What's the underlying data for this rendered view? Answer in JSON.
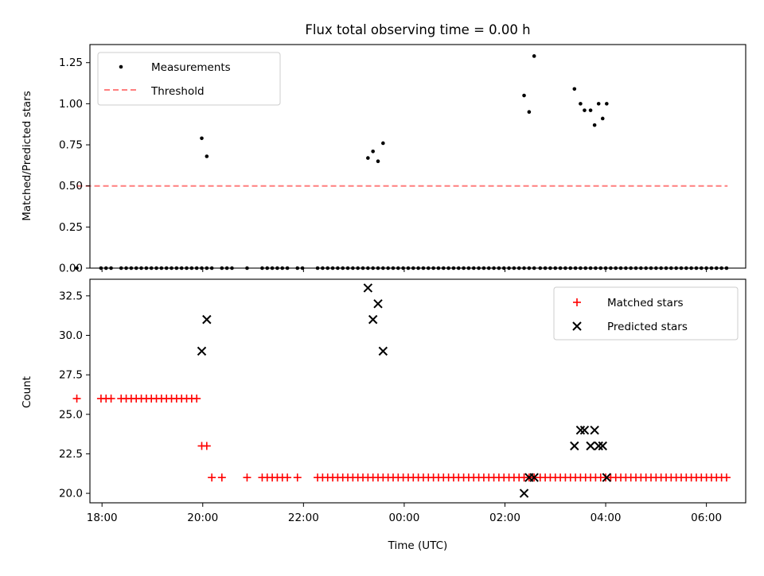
{
  "chart_data": [
    {
      "type": "scatter",
      "title": "Flux total observing time = 0.00 h",
      "xlabel": "",
      "ylabel": "Matched/Predicted stars",
      "ylim": [
        0,
        1.36
      ],
      "xlim": [
        -6.24,
        6.78
      ],
      "x_unit": "hours relative to 00:00 UTC",
      "yticks": [
        "0.00",
        "0.25",
        "0.50",
        "0.75",
        "1.00",
        "1.25"
      ],
      "legend": {
        "placement": "upper-left",
        "entries": [
          "Measurements",
          "Threshold"
        ]
      },
      "threshold": {
        "name": "Threshold",
        "value": 0.5,
        "x_range": [
          -6.5,
          6.42
        ],
        "color": "#ff7f7f"
      },
      "series": [
        {
          "name": "Measurements",
          "marker": "dot",
          "color": "#000000",
          "points": [
            [
              -6.5,
              0
            ],
            [
              -6.02,
              0
            ],
            [
              -5.92,
              0
            ],
            [
              -5.82,
              0
            ],
            [
              -5.62,
              0
            ],
            [
              -5.52,
              0
            ],
            [
              -5.42,
              0
            ],
            [
              -5.32,
              0
            ],
            [
              -5.22,
              0
            ],
            [
              -5.12,
              0
            ],
            [
              -5.02,
              0
            ],
            [
              -4.92,
              0
            ],
            [
              -4.82,
              0
            ],
            [
              -4.72,
              0
            ],
            [
              -4.62,
              0
            ],
            [
              -4.52,
              0
            ],
            [
              -4.42,
              0
            ],
            [
              -4.32,
              0
            ],
            [
              -4.22,
              0
            ],
            [
              -4.12,
              0
            ],
            [
              -4.02,
              0
            ],
            [
              -3.92,
              0
            ],
            [
              -3.82,
              0
            ],
            [
              -3.62,
              0
            ],
            [
              -3.52,
              0
            ],
            [
              -3.42,
              0
            ],
            [
              -3.12,
              0
            ],
            [
              -2.82,
              0
            ],
            [
              -2.72,
              0
            ],
            [
              -2.62,
              0
            ],
            [
              -2.52,
              0
            ],
            [
              -2.42,
              0
            ],
            [
              -2.32,
              0
            ],
            [
              -2.12,
              0
            ],
            [
              -2.02,
              0
            ],
            [
              -1.72,
              0
            ],
            [
              -1.62,
              0
            ],
            [
              -1.52,
              0
            ],
            [
              -1.42,
              0
            ],
            [
              -1.32,
              0
            ],
            [
              -1.22,
              0
            ],
            [
              -1.12,
              0
            ],
            [
              -1.02,
              0
            ],
            [
              -0.92,
              0
            ],
            [
              -0.82,
              0
            ],
            [
              -0.72,
              0
            ],
            [
              -0.62,
              0
            ],
            [
              -0.52,
              0
            ],
            [
              -0.42,
              0
            ],
            [
              -0.32,
              0
            ],
            [
              -0.22,
              0
            ],
            [
              -0.12,
              0
            ],
            [
              -0.02,
              0
            ],
            [
              0.08,
              0
            ],
            [
              0.18,
              0
            ],
            [
              0.28,
              0
            ],
            [
              0.38,
              0
            ],
            [
              0.48,
              0
            ],
            [
              0.58,
              0
            ],
            [
              0.68,
              0
            ],
            [
              0.78,
              0
            ],
            [
              0.88,
              0
            ],
            [
              0.98,
              0
            ],
            [
              1.08,
              0
            ],
            [
              1.18,
              0
            ],
            [
              1.28,
              0
            ],
            [
              1.38,
              0
            ],
            [
              1.48,
              0
            ],
            [
              1.58,
              0
            ],
            [
              1.68,
              0
            ],
            [
              1.78,
              0
            ],
            [
              1.88,
              0
            ],
            [
              1.98,
              0
            ],
            [
              2.08,
              0
            ],
            [
              2.18,
              0
            ],
            [
              2.28,
              0
            ],
            [
              2.38,
              0
            ],
            [
              2.48,
              0
            ],
            [
              2.58,
              0
            ],
            [
              2.7,
              0
            ],
            [
              2.8,
              0
            ],
            [
              2.9,
              0
            ],
            [
              3.0,
              0
            ],
            [
              3.1,
              0
            ],
            [
              3.2,
              0
            ],
            [
              3.3,
              0
            ],
            [
              3.4,
              0
            ],
            [
              3.5,
              0
            ],
            [
              3.6,
              0
            ],
            [
              3.7,
              0
            ],
            [
              3.8,
              0
            ],
            [
              3.9,
              0
            ],
            [
              4.0,
              0
            ],
            [
              4.1,
              0
            ],
            [
              4.2,
              0
            ],
            [
              4.3,
              0
            ],
            [
              4.4,
              0
            ],
            [
              4.5,
              0
            ],
            [
              4.6,
              0
            ],
            [
              4.7,
              0
            ],
            [
              4.8,
              0
            ],
            [
              4.9,
              0
            ],
            [
              5.0,
              0
            ],
            [
              5.1,
              0
            ],
            [
              5.2,
              0
            ],
            [
              5.3,
              0
            ],
            [
              5.4,
              0
            ],
            [
              5.5,
              0
            ],
            [
              5.6,
              0
            ],
            [
              5.7,
              0
            ],
            [
              5.8,
              0
            ],
            [
              5.9,
              0
            ],
            [
              6.0,
              0
            ],
            [
              6.1,
              0
            ],
            [
              6.2,
              0
            ],
            [
              6.3,
              0
            ],
            [
              6.4,
              0
            ],
            [
              -4.02,
              0.79
            ],
            [
              -3.92,
              0.68
            ],
            [
              -0.72,
              0.67
            ],
            [
              -0.62,
              0.71
            ],
            [
              -0.52,
              0.65
            ],
            [
              -0.42,
              0.76
            ],
            [
              2.38,
              1.05
            ],
            [
              2.48,
              0.95
            ],
            [
              2.58,
              1.29
            ],
            [
              3.38,
              1.09
            ],
            [
              3.5,
              1.0
            ],
            [
              3.58,
              0.96
            ],
            [
              3.7,
              0.96
            ],
            [
              3.78,
              0.87
            ],
            [
              3.86,
              1.0
            ],
            [
              3.94,
              0.91
            ],
            [
              4.02,
              1.0
            ]
          ]
        }
      ]
    },
    {
      "type": "scatter",
      "title": "",
      "xlabel": "Time (UTC)",
      "ylabel": "Count",
      "ylim": [
        19.4,
        33.55
      ],
      "xlim": [
        -6.24,
        6.78
      ],
      "x_unit": "hours relative to 00:00 UTC",
      "xticks": [
        {
          "value": -6,
          "label": "18:00"
        },
        {
          "value": -4,
          "label": "20:00"
        },
        {
          "value": -2,
          "label": "22:00"
        },
        {
          "value": 0,
          "label": "00:00"
        },
        {
          "value": 2,
          "label": "02:00"
        },
        {
          "value": 4,
          "label": "04:00"
        },
        {
          "value": 6,
          "label": "06:00"
        }
      ],
      "yticks": [
        "20.0",
        "22.5",
        "25.0",
        "27.5",
        "30.0",
        "32.5"
      ],
      "legend": {
        "placement": "upper-right",
        "entries": [
          "Matched stars",
          "Predicted stars"
        ]
      },
      "series": [
        {
          "name": "Matched stars",
          "marker": "plus",
          "color": "#ff0000",
          "points": [
            [
              -6.5,
              26
            ],
            [
              -6.02,
              26
            ],
            [
              -5.92,
              26
            ],
            [
              -5.82,
              26
            ],
            [
              -5.62,
              26
            ],
            [
              -5.52,
              26
            ],
            [
              -5.42,
              26
            ],
            [
              -5.32,
              26
            ],
            [
              -5.22,
              26
            ],
            [
              -5.12,
              26
            ],
            [
              -5.02,
              26
            ],
            [
              -4.92,
              26
            ],
            [
              -4.82,
              26
            ],
            [
              -4.72,
              26
            ],
            [
              -4.62,
              26
            ],
            [
              -4.52,
              26
            ],
            [
              -4.42,
              26
            ],
            [
              -4.32,
              26
            ],
            [
              -4.22,
              26
            ],
            [
              -4.12,
              26
            ],
            [
              -4.02,
              23
            ],
            [
              -3.92,
              23
            ],
            [
              -3.82,
              21
            ],
            [
              -3.62,
              21
            ],
            [
              -3.12,
              21
            ],
            [
              -2.82,
              21
            ],
            [
              -2.72,
              21
            ],
            [
              -2.62,
              21
            ],
            [
              -2.52,
              21
            ],
            [
              -2.42,
              21
            ],
            [
              -2.32,
              21
            ],
            [
              -2.12,
              21
            ],
            [
              -1.72,
              21
            ],
            [
              -1.62,
              21
            ],
            [
              -1.52,
              21
            ],
            [
              -1.42,
              21
            ],
            [
              -1.32,
              21
            ],
            [
              -1.22,
              21
            ],
            [
              -1.12,
              21
            ],
            [
              -1.02,
              21
            ],
            [
              -0.92,
              21
            ],
            [
              -0.82,
              21
            ],
            [
              -0.72,
              21
            ],
            [
              -0.62,
              21
            ],
            [
              -0.52,
              21
            ],
            [
              -0.42,
              21
            ],
            [
              -0.32,
              21
            ],
            [
              -0.22,
              21
            ],
            [
              -0.12,
              21
            ],
            [
              -0.02,
              21
            ],
            [
              0.08,
              21
            ],
            [
              0.18,
              21
            ],
            [
              0.28,
              21
            ],
            [
              0.38,
              21
            ],
            [
              0.48,
              21
            ],
            [
              0.58,
              21
            ],
            [
              0.68,
              21
            ],
            [
              0.78,
              21
            ],
            [
              0.88,
              21
            ],
            [
              0.98,
              21
            ],
            [
              1.08,
              21
            ],
            [
              1.18,
              21
            ],
            [
              1.28,
              21
            ],
            [
              1.38,
              21
            ],
            [
              1.48,
              21
            ],
            [
              1.58,
              21
            ],
            [
              1.68,
              21
            ],
            [
              1.78,
              21
            ],
            [
              1.88,
              21
            ],
            [
              1.98,
              21
            ],
            [
              2.08,
              21
            ],
            [
              2.18,
              21
            ],
            [
              2.28,
              21
            ],
            [
              2.38,
              21
            ],
            [
              2.48,
              21
            ],
            [
              2.58,
              21
            ],
            [
              2.7,
              21
            ],
            [
              2.8,
              21
            ],
            [
              2.9,
              21
            ],
            [
              3.0,
              21
            ],
            [
              3.1,
              21
            ],
            [
              3.2,
              21
            ],
            [
              3.3,
              21
            ],
            [
              3.4,
              21
            ],
            [
              3.5,
              21
            ],
            [
              3.6,
              21
            ],
            [
              3.7,
              21
            ],
            [
              3.8,
              21
            ],
            [
              3.9,
              21
            ],
            [
              4.0,
              21
            ],
            [
              4.1,
              21
            ],
            [
              4.2,
              21
            ],
            [
              4.3,
              21
            ],
            [
              4.4,
              21
            ],
            [
              4.5,
              21
            ],
            [
              4.6,
              21
            ],
            [
              4.7,
              21
            ],
            [
              4.8,
              21
            ],
            [
              4.9,
              21
            ],
            [
              5.0,
              21
            ],
            [
              5.1,
              21
            ],
            [
              5.2,
              21
            ],
            [
              5.3,
              21
            ],
            [
              5.4,
              21
            ],
            [
              5.5,
              21
            ],
            [
              5.6,
              21
            ],
            [
              5.7,
              21
            ],
            [
              5.8,
              21
            ],
            [
              5.9,
              21
            ],
            [
              6.0,
              21
            ],
            [
              6.1,
              21
            ],
            [
              6.2,
              21
            ],
            [
              6.3,
              21
            ],
            [
              6.4,
              21
            ]
          ]
        },
        {
          "name": "Predicted stars",
          "marker": "x",
          "color": "#000000",
          "points": [
            [
              -4.02,
              29
            ],
            [
              -3.92,
              31
            ],
            [
              -0.72,
              33
            ],
            [
              -0.62,
              31
            ],
            [
              -0.52,
              32
            ],
            [
              -0.42,
              29
            ],
            [
              2.38,
              20
            ],
            [
              2.48,
              21
            ],
            [
              2.58,
              21
            ],
            [
              3.38,
              23
            ],
            [
              3.5,
              24
            ],
            [
              3.58,
              24
            ],
            [
              3.7,
              23
            ],
            [
              3.78,
              24
            ],
            [
              3.86,
              23
            ],
            [
              3.94,
              23
            ],
            [
              4.02,
              21
            ]
          ]
        }
      ]
    }
  ]
}
